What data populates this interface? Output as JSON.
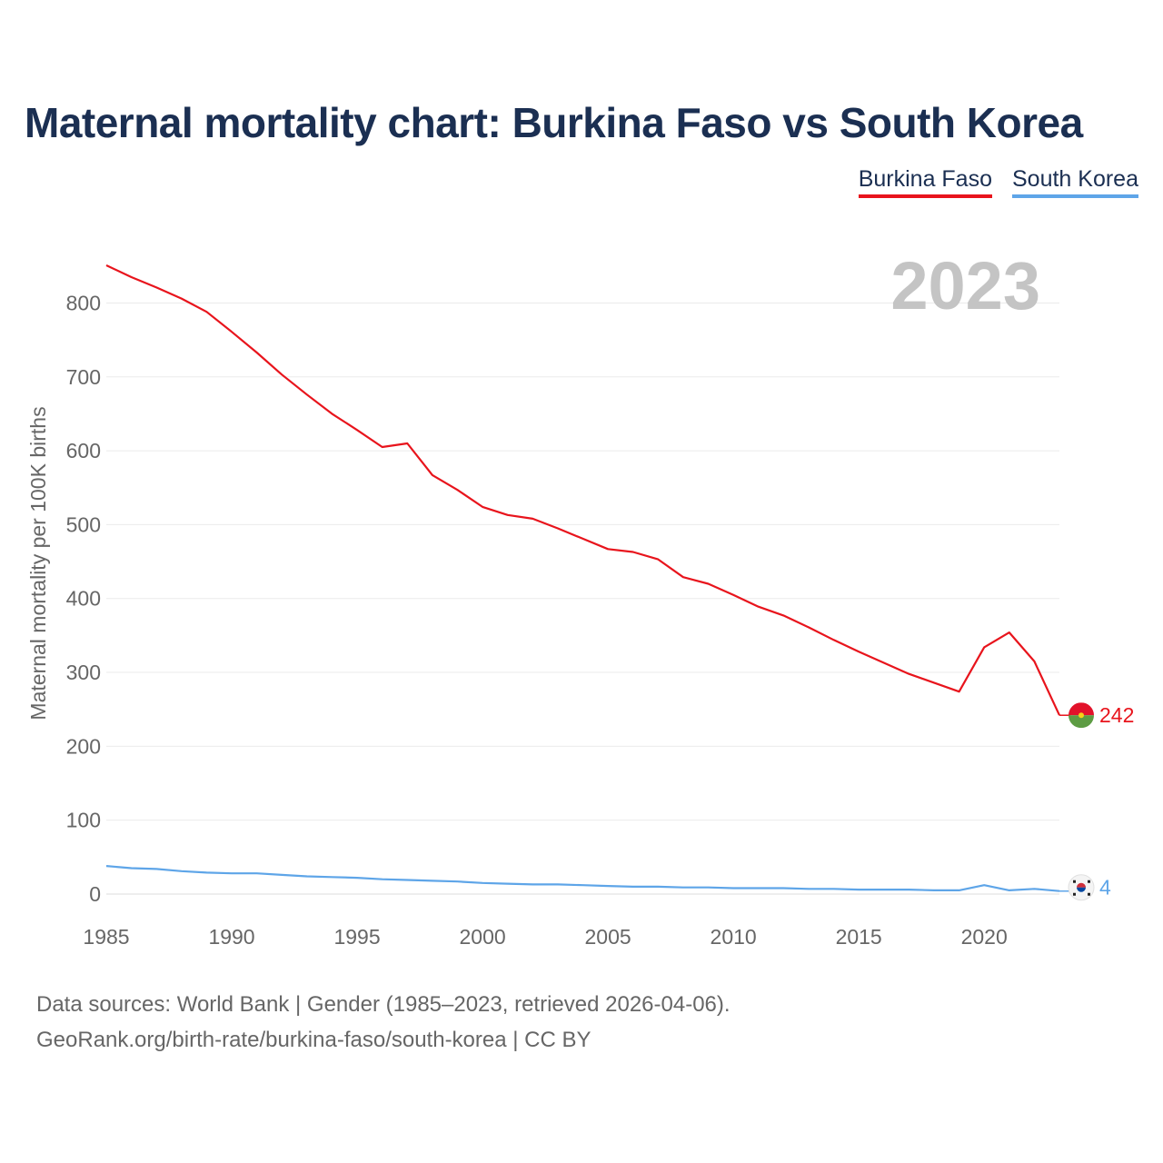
{
  "title": "Maternal mortality chart: Burkina Faso vs South Korea",
  "legend": [
    {
      "label": "Burkina Faso",
      "color": "#e8141c"
    },
    {
      "label": "South Korea",
      "color": "#5ea5e8"
    }
  ],
  "source": {
    "line1": "Data sources: World Bank | Gender (1985–2023, retrieved 2026-04-06).",
    "line2": "GeoRank.org/birth-rate/burkina-faso/south-korea | CC BY"
  },
  "chart_data": {
    "type": "line",
    "title": "Maternal mortality chart: Burkina Faso vs South Korea",
    "xlabel": "",
    "ylabel": "Maternal mortality per 100K births",
    "year_label": "2023",
    "xlim": [
      1985,
      2023
    ],
    "ylim": [
      0,
      850
    ],
    "x_ticks": [
      1985,
      1990,
      1995,
      2000,
      2005,
      2010,
      2015,
      2020
    ],
    "y_ticks": [
      0,
      100,
      200,
      300,
      400,
      500,
      600,
      700,
      800
    ],
    "grid": true,
    "legend_position": "top-right",
    "x": [
      1985,
      1986,
      1987,
      1988,
      1989,
      1990,
      1991,
      1992,
      1993,
      1994,
      1995,
      1996,
      1997,
      1998,
      1999,
      2000,
      2001,
      2002,
      2003,
      2004,
      2005,
      2006,
      2007,
      2008,
      2009,
      2010,
      2011,
      2012,
      2013,
      2014,
      2015,
      2016,
      2017,
      2018,
      2019,
      2020,
      2021,
      2022,
      2023
    ],
    "series": [
      {
        "name": "Burkina Faso",
        "color": "#e8141c",
        "end_label": "242",
        "flag": "burkina-faso-flag-icon",
        "values": [
          851,
          835,
          821,
          806,
          788,
          761,
          733,
          703,
          676,
          650,
          628,
          605,
          610,
          567,
          547,
          524,
          513,
          508,
          495,
          481,
          467,
          463,
          453,
          429,
          420,
          405,
          389,
          377,
          361,
          344,
          328,
          313,
          298,
          286,
          274,
          334,
          354,
          315,
          242
        ]
      },
      {
        "name": "South Korea",
        "color": "#5ea5e8",
        "end_label": "4",
        "flag": "south-korea-flag-icon",
        "values": [
          38,
          35,
          34,
          31,
          29,
          28,
          28,
          26,
          24,
          23,
          22,
          20,
          19,
          18,
          17,
          15,
          14,
          13,
          13,
          12,
          11,
          10,
          10,
          9,
          9,
          8,
          8,
          8,
          7,
          7,
          6,
          6,
          6,
          5,
          5,
          12,
          5,
          7,
          4
        ]
      }
    ]
  }
}
